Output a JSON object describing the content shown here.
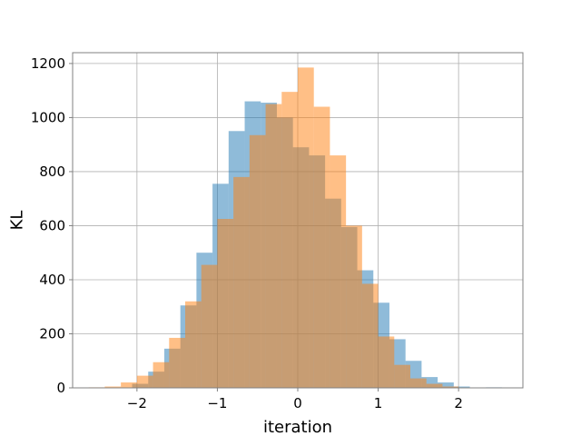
{
  "chart_data": {
    "type": "bar",
    "subtype": "overlapping-histogram",
    "title": "",
    "xlabel": "iteration",
    "ylabel": "KL",
    "xlim": [
      -2.8,
      2.8
    ],
    "ylim": [
      0,
      1240
    ],
    "xticks": [
      -2,
      -1,
      0,
      1,
      2
    ],
    "xtick_labels": [
      "−2",
      "−1",
      "0",
      "1",
      "2"
    ],
    "yticks": [
      0,
      200,
      400,
      600,
      800,
      1000,
      1200
    ],
    "ytick_labels": [
      "0",
      "200",
      "400",
      "600",
      "800",
      "1000",
      "1200"
    ],
    "grid": true,
    "legend": "none",
    "series": [
      {
        "color": "#1f77b4",
        "alpha": 0.5,
        "bins": [
          {
            "x0": -2.06,
            "x1": -1.86,
            "count": 15
          },
          {
            "x0": -1.86,
            "x1": -1.66,
            "count": 60
          },
          {
            "x0": -1.66,
            "x1": -1.46,
            "count": 145
          },
          {
            "x0": -1.46,
            "x1": -1.26,
            "count": 305
          },
          {
            "x0": -1.26,
            "x1": -1.06,
            "count": 500
          },
          {
            "x0": -1.06,
            "x1": -0.86,
            "count": 755
          },
          {
            "x0": -0.86,
            "x1": -0.66,
            "count": 950
          },
          {
            "x0": -0.66,
            "x1": -0.46,
            "count": 1060
          },
          {
            "x0": -0.46,
            "x1": -0.26,
            "count": 1055
          },
          {
            "x0": -0.26,
            "x1": -0.06,
            "count": 1000
          },
          {
            "x0": -0.06,
            "x1": 0.14,
            "count": 890
          },
          {
            "x0": 0.14,
            "x1": 0.34,
            "count": 860
          },
          {
            "x0": 0.34,
            "x1": 0.54,
            "count": 700
          },
          {
            "x0": 0.54,
            "x1": 0.74,
            "count": 595
          },
          {
            "x0": 0.74,
            "x1": 0.94,
            "count": 435
          },
          {
            "x0": 0.94,
            "x1": 1.14,
            "count": 315
          },
          {
            "x0": 1.14,
            "x1": 1.34,
            "count": 180
          },
          {
            "x0": 1.34,
            "x1": 1.54,
            "count": 100
          },
          {
            "x0": 1.54,
            "x1": 1.74,
            "count": 40
          },
          {
            "x0": 1.74,
            "x1": 1.94,
            "count": 20
          },
          {
            "x0": 1.94,
            "x1": 2.14,
            "count": 5
          },
          {
            "x0": 2.14,
            "x1": 2.34,
            "count": 0
          },
          {
            "x0": 2.34,
            "x1": 2.54,
            "count": 2
          }
        ]
      },
      {
        "color": "#ff7f0e",
        "alpha": 0.5,
        "bins": [
          {
            "x0": -2.6,
            "x1": -2.4,
            "count": 2
          },
          {
            "x0": -2.4,
            "x1": -2.2,
            "count": 5
          },
          {
            "x0": -2.2,
            "x1": -2.0,
            "count": 20
          },
          {
            "x0": -2.0,
            "x1": -1.8,
            "count": 45
          },
          {
            "x0": -1.8,
            "x1": -1.6,
            "count": 95
          },
          {
            "x0": -1.6,
            "x1": -1.4,
            "count": 185
          },
          {
            "x0": -1.4,
            "x1": -1.2,
            "count": 320
          },
          {
            "x0": -1.2,
            "x1": -1.0,
            "count": 455
          },
          {
            "x0": -1.0,
            "x1": -0.8,
            "count": 625
          },
          {
            "x0": -0.8,
            "x1": -0.6,
            "count": 780
          },
          {
            "x0": -0.6,
            "x1": -0.4,
            "count": 935
          },
          {
            "x0": -0.4,
            "x1": -0.2,
            "count": 1050
          },
          {
            "x0": -0.2,
            "x1": 0.0,
            "count": 1095
          },
          {
            "x0": 0.0,
            "x1": 0.2,
            "count": 1185
          },
          {
            "x0": 0.2,
            "x1": 0.4,
            "count": 1040
          },
          {
            "x0": 0.4,
            "x1": 0.6,
            "count": 860
          },
          {
            "x0": 0.6,
            "x1": 0.8,
            "count": 600
          },
          {
            "x0": 0.8,
            "x1": 1.0,
            "count": 385
          },
          {
            "x0": 1.0,
            "x1": 1.2,
            "count": 190
          },
          {
            "x0": 1.2,
            "x1": 1.4,
            "count": 85
          },
          {
            "x0": 1.4,
            "x1": 1.6,
            "count": 35
          },
          {
            "x0": 1.6,
            "x1": 1.8,
            "count": 15
          },
          {
            "x0": 1.8,
            "x1": 2.0,
            "count": 5
          }
        ]
      }
    ]
  }
}
